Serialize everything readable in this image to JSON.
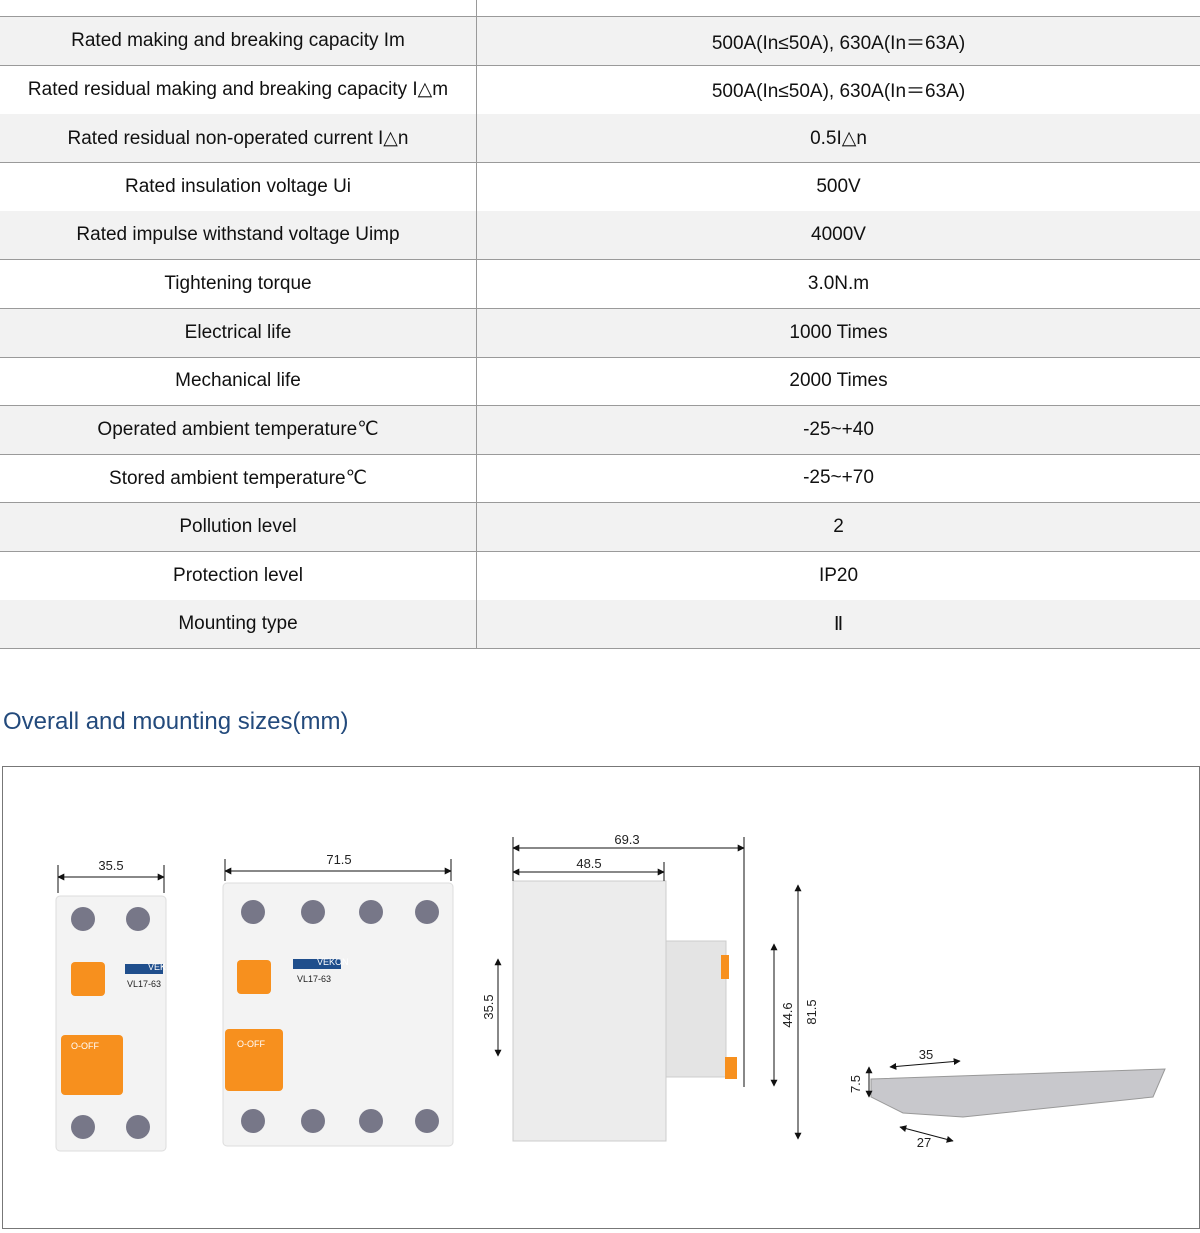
{
  "table": {
    "rows": [
      [
        "Rated making and breaking capacity Im",
        "500A(In≤50A), 630A(In＝63A)"
      ],
      [
        "Rated residual making and breaking capacity I△m",
        "500A(In≤50A), 630A(In＝63A)"
      ],
      [
        "Rated residual non-operated current I△n",
        "0.5I△n"
      ],
      [
        "Rated insulation voltage Ui",
        "500V"
      ],
      [
        "Rated impulse withstand voltage Uimp",
        "4000V"
      ],
      [
        "Tightening torque",
        "3.0N.m"
      ],
      [
        "Electrical life",
        "1000 Times"
      ],
      [
        "Mechanical life",
        "2000 Times"
      ],
      [
        "Operated ambient temperature℃",
        "-25~+40"
      ],
      [
        "Stored ambient temperature℃",
        "-25~+70"
      ],
      [
        "Pollution level",
        "2"
      ],
      [
        "Protection level",
        "IP20"
      ],
      [
        "Mounting type",
        "Ⅱ"
      ]
    ]
  },
  "section": {
    "title": "Overall and mounting sizes(mm)"
  },
  "drawing": {
    "model": "VL17-63",
    "switch": "O-OFF",
    "brand": "VEKON",
    "dimensions": [
      "35.5",
      "71.5",
      "69.3",
      "48.5",
      "35.5",
      "44.6",
      "81.5",
      "35",
      "7.5",
      "27"
    ]
  }
}
